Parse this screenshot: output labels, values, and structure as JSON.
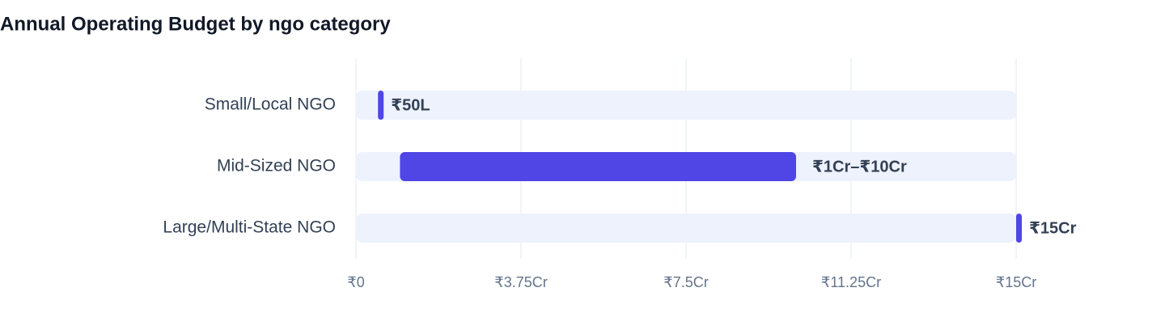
{
  "chart_data": {
    "type": "range",
    "title": "Annual Operating Budget by ngo category",
    "categories": [
      "Small/Local NGO",
      "Mid-Sized NGO",
      "Large/Multi-State NGO"
    ],
    "low": [
      0.5,
      1,
      15
    ],
    "high": [
      0.5,
      10,
      15
    ],
    "value_labels": [
      "₹50L",
      "₹1Cr–₹10Cr",
      "₹15Cr"
    ],
    "color": "#4f46e5",
    "track_color": "#eef2fd",
    "xlim": [
      0,
      15
    ],
    "xticks": [
      {
        "value": 0,
        "label": "₹0"
      },
      {
        "value": 3.75,
        "label": "₹3.75Cr"
      },
      {
        "value": 7.5,
        "label": "₹7.5Cr"
      },
      {
        "value": 11.25,
        "label": "₹11.25Cr"
      },
      {
        "value": 15,
        "label": "₹15Cr"
      }
    ],
    "grid": true
  }
}
